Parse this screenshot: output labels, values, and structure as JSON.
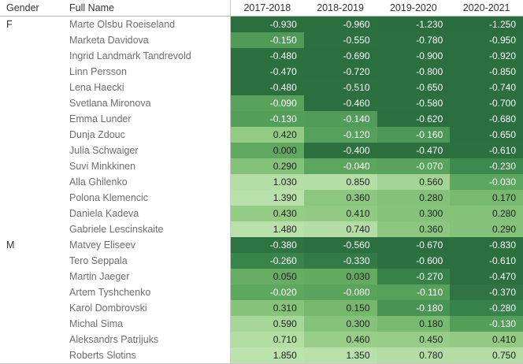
{
  "chart_data": {
    "type": "heatmap",
    "columns": {
      "gender": "Gender",
      "full_name": "Full Name"
    },
    "seasons": [
      "2017-2018",
      "2018-2019",
      "2019-2020",
      "2020-2021"
    ],
    "value_decimals": 3,
    "value_range": [
      -1.25,
      1.85
    ],
    "legend_position": "none",
    "grid": "off",
    "groups": [
      {
        "gender": "F",
        "athletes": [
          {
            "name": "Marte Olsbu Roeiseland",
            "values": [
              -0.93,
              -0.96,
              -1.23,
              -1.25
            ]
          },
          {
            "name": "Marketa Davidova",
            "values": [
              -0.15,
              -0.55,
              -0.78,
              -0.95
            ]
          },
          {
            "name": "Ingrid Landmark Tandrevold",
            "values": [
              -0.48,
              -0.69,
              -0.9,
              -0.92
            ]
          },
          {
            "name": "Linn Persson",
            "values": [
              -0.47,
              -0.72,
              -0.8,
              -0.85
            ]
          },
          {
            "name": "Lena Haecki",
            "values": [
              -0.48,
              -0.51,
              -0.65,
              -0.74
            ]
          },
          {
            "name": "Svetlana Mironova",
            "values": [
              -0.09,
              -0.46,
              -0.58,
              -0.7
            ]
          },
          {
            "name": "Emma Lunder",
            "values": [
              -0.13,
              -0.14,
              -0.62,
              -0.68
            ]
          },
          {
            "name": "Dunja Zdouc",
            "values": [
              0.42,
              -0.12,
              -0.16,
              -0.65
            ]
          },
          {
            "name": "Julia Schwaiger",
            "values": [
              0.0,
              -0.4,
              -0.47,
              -0.61
            ]
          },
          {
            "name": "Suvi Minkkinen",
            "values": [
              0.29,
              -0.04,
              -0.07,
              -0.23
            ]
          },
          {
            "name": "Alla Ghilenko",
            "values": [
              1.03,
              0.85,
              0.56,
              -0.03
            ]
          },
          {
            "name": "Polona Klemencic",
            "values": [
              1.39,
              0.36,
              0.28,
              0.17
            ]
          },
          {
            "name": "Daniela Kadeva",
            "values": [
              0.43,
              0.41,
              0.3,
              0.28
            ]
          },
          {
            "name": "Gabriele Lescinskaite",
            "values": [
              1.48,
              0.74,
              0.36,
              0.29
            ]
          }
        ]
      },
      {
        "gender": "M",
        "athletes": [
          {
            "name": "Matvey Eliseev",
            "values": [
              -0.38,
              -0.56,
              -0.67,
              -0.83
            ]
          },
          {
            "name": "Tero Seppala",
            "values": [
              -0.26,
              -0.33,
              -0.6,
              -0.61
            ]
          },
          {
            "name": "Martin Jaeger",
            "values": [
              0.05,
              0.03,
              -0.27,
              -0.47
            ]
          },
          {
            "name": "Artem Tyshchenko",
            "values": [
              -0.02,
              -0.08,
              -0.11,
              -0.37
            ]
          },
          {
            "name": "Karol Dombrovski",
            "values": [
              0.31,
              0.15,
              -0.18,
              -0.28
            ]
          },
          {
            "name": "Michal Sima",
            "values": [
              0.59,
              0.3,
              0.18,
              -0.13
            ]
          },
          {
            "name": "Aleksandrs Patrijuks",
            "values": [
              0.71,
              0.46,
              0.45,
              0.41
            ]
          },
          {
            "name": "Roberts Slotins",
            "values": [
              1.85,
              1.35,
              0.78,
              0.75
            ]
          }
        ]
      }
    ],
    "color_scale": [
      {
        "value": -1.25,
        "color": "#2a6e3f"
      },
      {
        "value": -0.4,
        "color": "#2c7040"
      },
      {
        "value": -0.25,
        "color": "#3a854c"
      },
      {
        "value": -0.12,
        "color": "#55a05a"
      },
      {
        "value": 0.0,
        "color": "#60a85f"
      },
      {
        "value": 0.16,
        "color": "#76b96d"
      },
      {
        "value": 0.3,
        "color": "#85c37a"
      },
      {
        "value": 0.45,
        "color": "#97cd87"
      },
      {
        "value": 0.6,
        "color": "#a8d79a"
      },
      {
        "value": 0.72,
        "color": "#b3dda4"
      },
      {
        "value": 1.85,
        "color": "#bce2ae"
      }
    ]
  },
  "colors": {
    "background": "#ffffff",
    "header_text": "#333333",
    "name_text": "#6e6e6e",
    "gender_text": "#333333",
    "grid_line": "#c9c9c9",
    "header_rule": "#b7b7b7",
    "sort_icon": "#8a8a8a",
    "cell_text_negative": "#ffffff",
    "cell_text_positive": "#1f1f1f"
  }
}
